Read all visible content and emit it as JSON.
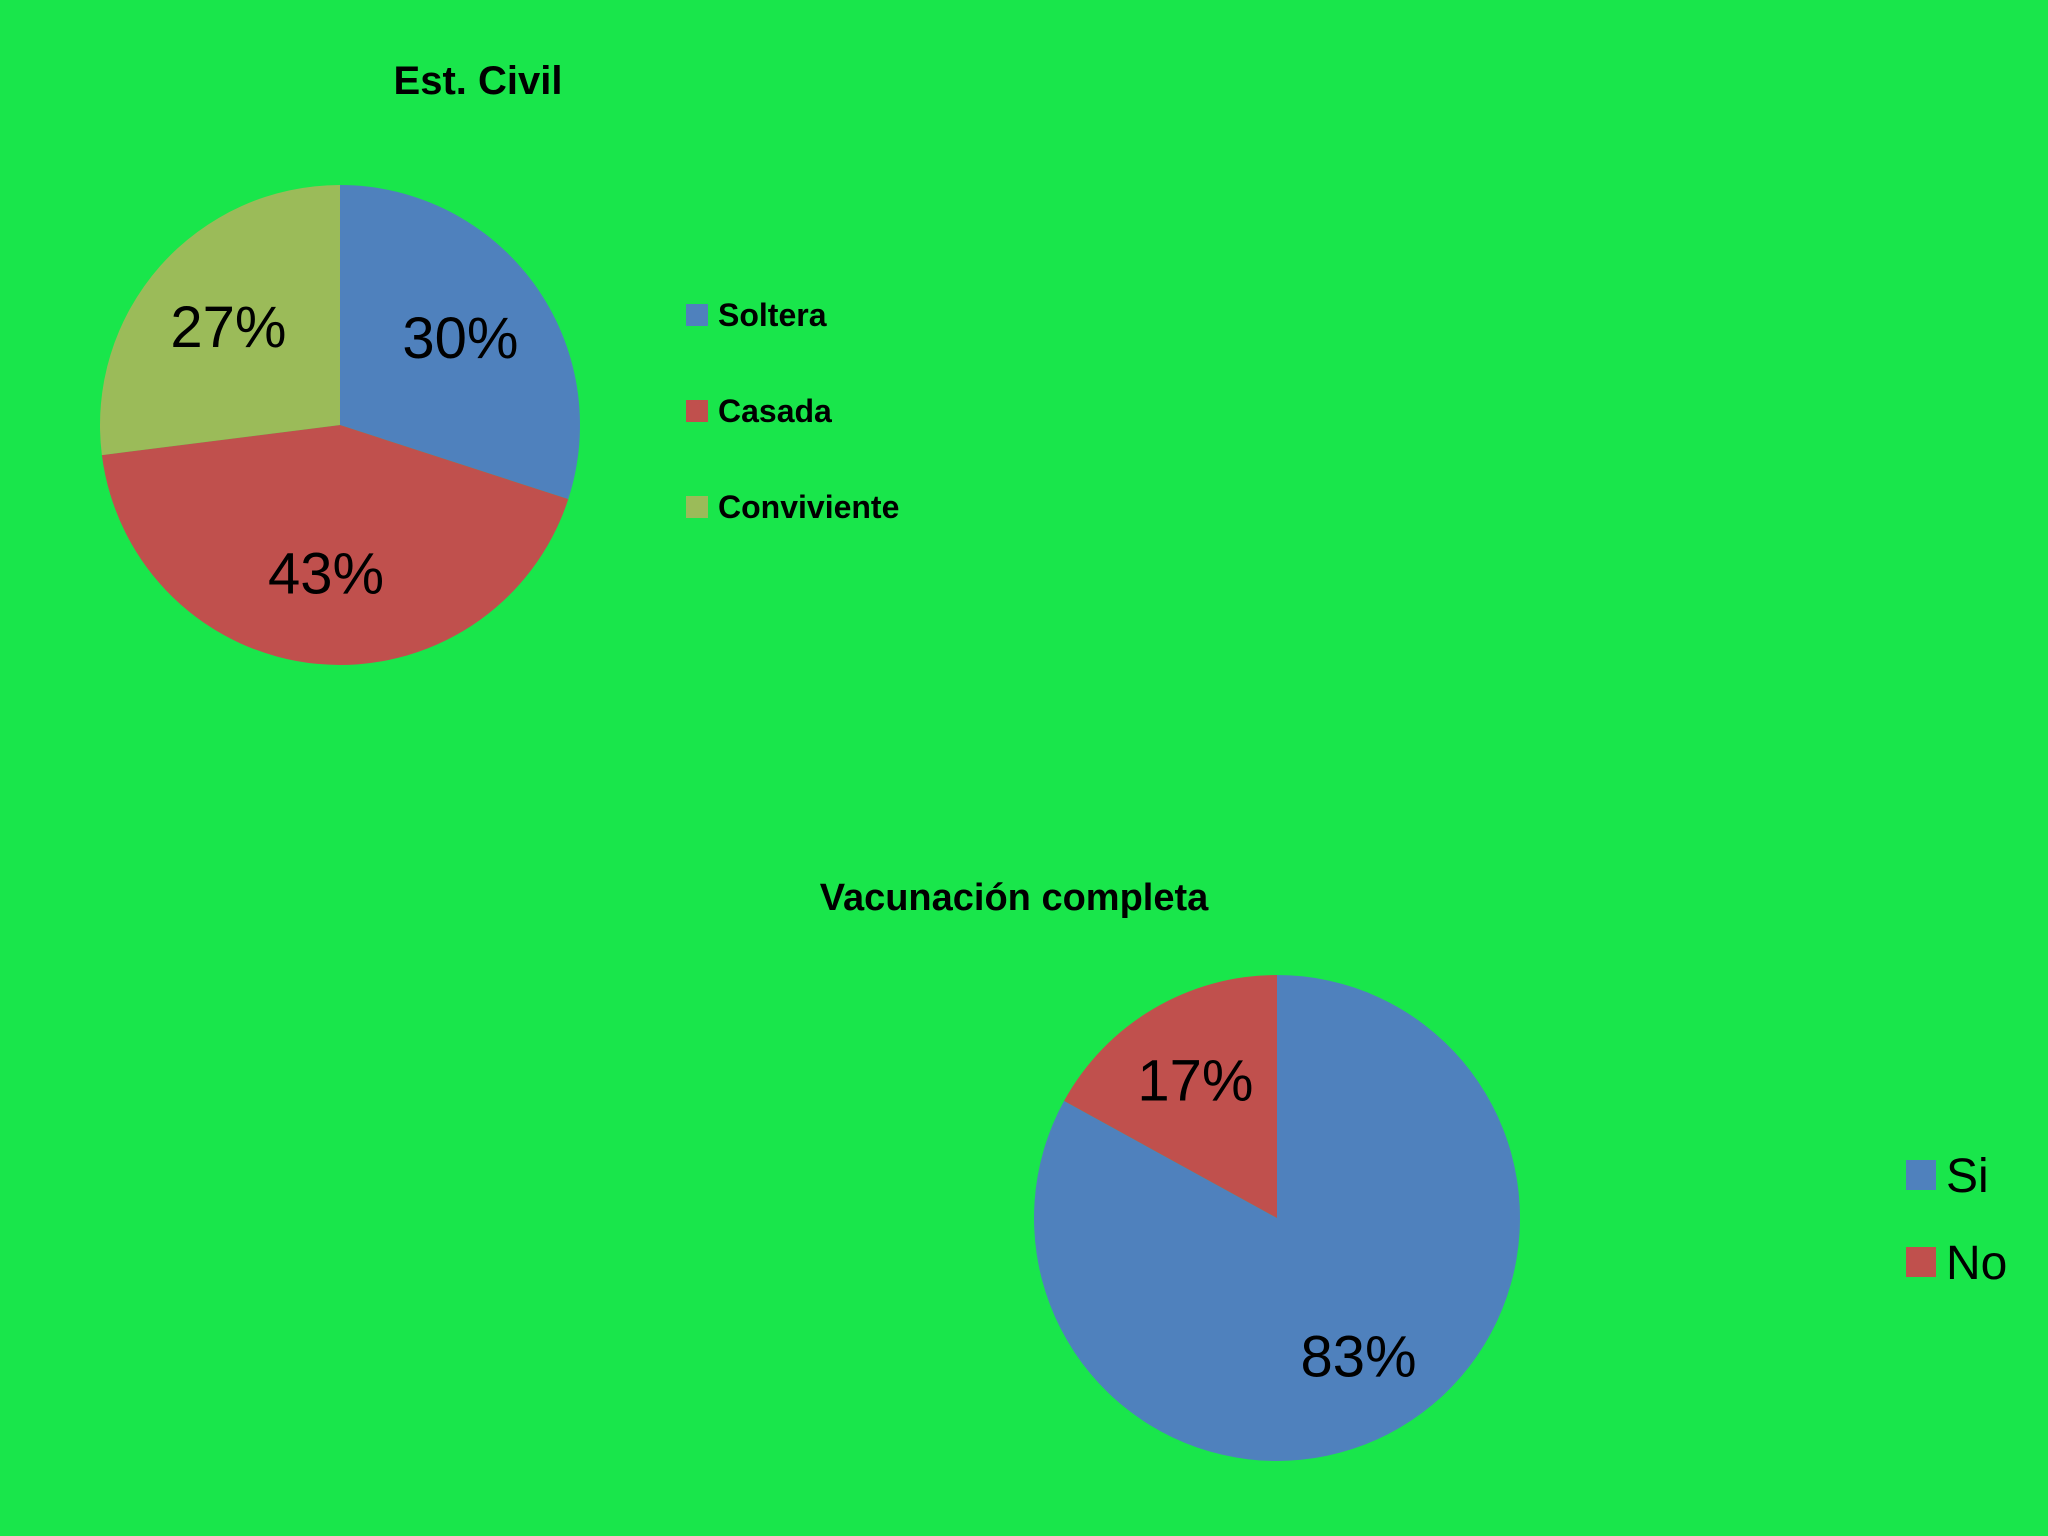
{
  "background": "#19e64b",
  "chart_data": [
    {
      "type": "pie",
      "title": "Est. Civil",
      "categories": [
        "Soltera",
        "Casada",
        "Conviviente"
      ],
      "values": [
        30,
        43,
        27
      ],
      "labels": [
        "30%",
        "43%",
        "27%"
      ],
      "colors": [
        "#4f81bd",
        "#c0504d",
        "#9bbb59"
      ],
      "legend": "right",
      "start_angle_deg": 0,
      "direction": "clockwise"
    },
    {
      "type": "pie",
      "title": "Vacunación completa",
      "categories": [
        "Si",
        "No"
      ],
      "values": [
        83,
        17
      ],
      "labels": [
        "83%",
        "17%"
      ],
      "colors": [
        "#4f81bd",
        "#c0504d"
      ],
      "legend": "right",
      "start_angle_deg": 0,
      "direction": "clockwise"
    }
  ]
}
